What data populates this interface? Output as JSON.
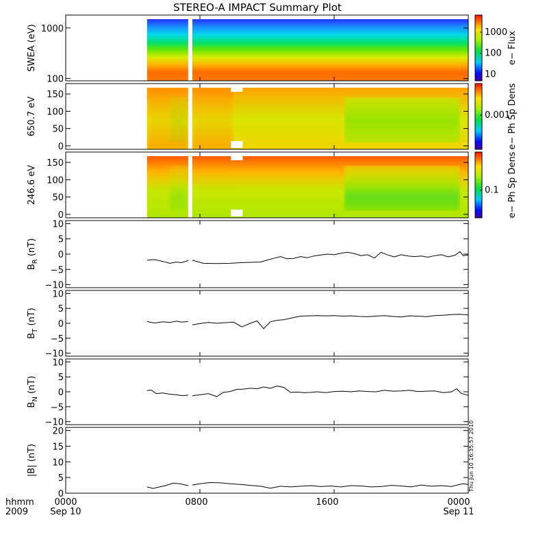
{
  "title": "STEREO-A IMPACT Summary Plot",
  "stamp": "Thu Jun 10 16:35:57 2010",
  "x_axis": {
    "range": [
      "2009-09-10 00:00",
      "2009-09-11 00:00"
    ],
    "hours": [
      0,
      24
    ],
    "row1_labels": [
      "hhmm",
      "0000",
      "0800",
      "1600",
      "0000"
    ],
    "row2_labels": [
      "2009",
      "Sep 10",
      "",
      "",
      "Sep 11"
    ],
    "tick_hours": [
      0,
      8,
      16,
      24
    ]
  },
  "chart_data": [
    {
      "type": "heatmap",
      "ylabel": "SWEA (eV)",
      "yscale": "log",
      "ylim": [
        90,
        1800
      ],
      "yticks": [
        100,
        1000
      ],
      "ytick_labels": [
        "100",
        "1000"
      ],
      "colorbar": {
        "label": "e− Flux",
        "scale": "log",
        "ticks": [
          10,
          100,
          1000
        ],
        "tick_labels": [
          "10",
          "100",
          "1000"
        ]
      },
      "data_intervals_hours": [
        [
          4.85,
          7.3
        ],
        [
          7.55,
          24
        ]
      ]
    },
    {
      "type": "heatmap",
      "ylabel": "650.7 eV",
      "ylim": [
        -10,
        180
      ],
      "yticks": [
        0,
        50,
        100,
        150
      ],
      "ytick_labels": [
        "0",
        "50",
        "100",
        "150"
      ],
      "colorbar": {
        "label": "e− Ph Sp Dens",
        "scale": "log",
        "ticks": [
          0.001
        ],
        "tick_labels": [
          "0.001"
        ]
      },
      "data_intervals_hours": [
        [
          4.85,
          7.3
        ],
        [
          7.55,
          24
        ]
      ]
    },
    {
      "type": "heatmap",
      "ylabel": "246.6 eV",
      "ylim": [
        -10,
        180
      ],
      "yticks": [
        0,
        50,
        100,
        150
      ],
      "ytick_labels": [
        "0",
        "50",
        "100",
        "150"
      ],
      "colorbar": {
        "label": "e− Ph Sp Dens",
        "scale": "log",
        "ticks": [
          0.1
        ],
        "tick_labels": [
          "0.1"
        ]
      },
      "data_intervals_hours": [
        [
          4.85,
          7.3
        ],
        [
          7.55,
          24
        ]
      ]
    },
    {
      "type": "line",
      "ylabel_main": "B",
      "ylabel_sub": "R",
      "ylabel_unit": "(nT)",
      "ylim": [
        -11,
        11
      ],
      "yticks": [
        -10,
        -5,
        0,
        5,
        10
      ],
      "ytick_labels": [
        "−10",
        "−5",
        "0",
        "5",
        "10"
      ],
      "segments": [
        {
          "x": [
            4.85,
            5.3,
            5.8,
            6.2,
            6.6,
            6.9,
            7.3
          ],
          "y": [
            -2.0,
            -1.8,
            -2.4,
            -3.0,
            -2.6,
            -2.8,
            -2.1
          ]
        },
        {
          "x": [
            7.55,
            8.2,
            9.0,
            9.8,
            10.4,
            11.0,
            11.6,
            12.0,
            12.4,
            12.8,
            13.2,
            13.6,
            14.0,
            14.4,
            14.8,
            15.2,
            15.6,
            16.0,
            16.4,
            16.8,
            17.2,
            17.6,
            18.0,
            18.4,
            18.8,
            19.2,
            19.6,
            20.0,
            20.4,
            20.8,
            21.2,
            21.6,
            22.0,
            22.4,
            22.8,
            23.2,
            23.5,
            23.7,
            24.0
          ],
          "y": [
            -2.0,
            -3.0,
            -3.1,
            -3.0,
            -2.8,
            -2.7,
            -2.6,
            -2.0,
            -1.4,
            -0.8,
            -1.5,
            -1.4,
            -0.8,
            -1.2,
            -0.6,
            -0.3,
            0.0,
            -0.2,
            0.3,
            0.6,
            0.2,
            -0.5,
            -0.2,
            -1.3,
            0.6,
            -0.3,
            -0.9,
            -0.2,
            -0.6,
            -0.8,
            -0.6,
            -1.0,
            -0.5,
            -0.2,
            -0.9,
            -0.4,
            0.8,
            -0.5,
            -0.3
          ]
        }
      ]
    },
    {
      "type": "line",
      "ylabel_main": "B",
      "ylabel_sub": "T",
      "ylabel_unit": "(nT)",
      "ylim": [
        -11,
        11
      ],
      "yticks": [
        -10,
        -5,
        0,
        5,
        10
      ],
      "ytick_labels": [
        "−10",
        "−5",
        "0",
        "5",
        "10"
      ],
      "segments": [
        {
          "x": [
            4.85,
            5.3,
            5.8,
            6.2,
            6.6,
            6.9,
            7.3
          ],
          "y": [
            0.6,
            0.1,
            0.5,
            0.3,
            0.7,
            0.4,
            0.6
          ]
        },
        {
          "x": [
            7.55,
            8.0,
            8.5,
            9.0,
            9.5,
            10.0,
            10.5,
            11.0,
            11.4,
            11.8,
            12.2,
            12.6,
            13.0,
            13.5,
            14.0,
            14.5,
            15.0,
            15.5,
            16.0,
            16.5,
            17.0,
            17.5,
            18.0,
            18.5,
            19.0,
            19.5,
            20.0,
            20.5,
            21.0,
            21.5,
            22.0,
            22.5,
            23.0,
            23.5,
            24.0
          ],
          "y": [
            -0.5,
            -0.1,
            0.3,
            0.0,
            0.2,
            0.4,
            -1.2,
            0.0,
            0.8,
            -1.8,
            0.5,
            1.0,
            1.2,
            1.8,
            2.4,
            2.5,
            2.6,
            2.5,
            2.6,
            2.4,
            2.5,
            2.3,
            2.2,
            2.4,
            2.6,
            2.3,
            2.1,
            2.5,
            2.4,
            2.2,
            2.6,
            2.7,
            2.9,
            3.0,
            2.8
          ]
        }
      ]
    },
    {
      "type": "line",
      "ylabel_main": "B",
      "ylabel_sub": "N",
      "ylabel_unit": "(nT)",
      "ylim": [
        -11,
        11
      ],
      "yticks": [
        -10,
        -5,
        0,
        5,
        10
      ],
      "ytick_labels": [
        "−10",
        "−5",
        "0",
        "5",
        "10"
      ],
      "segments": [
        {
          "x": [
            4.85,
            5.1,
            5.4,
            5.8,
            6.2,
            6.6,
            7.0,
            7.3
          ],
          "y": [
            0.4,
            0.6,
            -0.6,
            -0.4,
            -0.8,
            -1.0,
            -1.3,
            -1.1
          ]
        },
        {
          "x": [
            7.55,
            8.0,
            8.5,
            9.0,
            9.4,
            9.8,
            10.2,
            10.6,
            11.0,
            11.4,
            11.8,
            12.2,
            12.6,
            13.0,
            13.4,
            13.8,
            14.2,
            14.6,
            15.0,
            15.5,
            16.0,
            16.5,
            17.0,
            17.5,
            18.0,
            18.5,
            19.0,
            19.5,
            20.0,
            20.5,
            21.0,
            21.5,
            22.0,
            22.5,
            23.0,
            23.3,
            23.6,
            24.0
          ],
          "y": [
            -1.3,
            -1.0,
            -0.6,
            -1.6,
            -0.2,
            0.1,
            0.8,
            0.9,
            1.2,
            1.0,
            1.6,
            1.2,
            1.9,
            1.5,
            -0.2,
            -0.1,
            -0.3,
            -0.2,
            0.0,
            -0.3,
            0.1,
            0.2,
            0.0,
            0.3,
            0.1,
            0.0,
            0.5,
            0.2,
            0.3,
            0.5,
            0.1,
            0.2,
            0.3,
            -0.3,
            0.0,
            1.0,
            -0.6,
            -1.2
          ]
        }
      ]
    },
    {
      "type": "line",
      "ylabel_main": "|B|",
      "ylabel_sub": "",
      "ylabel_unit": "(nT)",
      "ylim": [
        0,
        21
      ],
      "yticks": [
        0,
        5,
        10,
        15,
        20
      ],
      "ytick_labels": [
        "0",
        "5",
        "10",
        "15",
        "20"
      ],
      "segments": [
        {
          "x": [
            4.85,
            5.2,
            5.6,
            6.0,
            6.4,
            6.8,
            7.3
          ],
          "y": [
            2.0,
            1.5,
            2.0,
            2.5,
            3.2,
            3.0,
            2.4
          ]
        },
        {
          "x": [
            7.55,
            8.0,
            8.6,
            9.2,
            9.8,
            10.4,
            11.0,
            11.6,
            12.2,
            12.8,
            13.4,
            14.0,
            14.6,
            15.2,
            15.8,
            16.4,
            17.0,
            17.6,
            18.2,
            18.8,
            19.4,
            20.0,
            20.6,
            21.2,
            21.8,
            22.4,
            23.0,
            23.4,
            23.7,
            24.0
          ],
          "y": [
            2.6,
            3.0,
            3.4,
            3.3,
            3.0,
            2.8,
            2.5,
            2.2,
            1.6,
            2.2,
            2.0,
            2.2,
            2.4,
            2.1,
            2.3,
            2.0,
            2.4,
            2.3,
            2.0,
            2.1,
            2.5,
            2.3,
            2.0,
            2.6,
            2.2,
            2.4,
            2.1,
            2.7,
            3.0,
            2.8
          ]
        }
      ]
    }
  ]
}
